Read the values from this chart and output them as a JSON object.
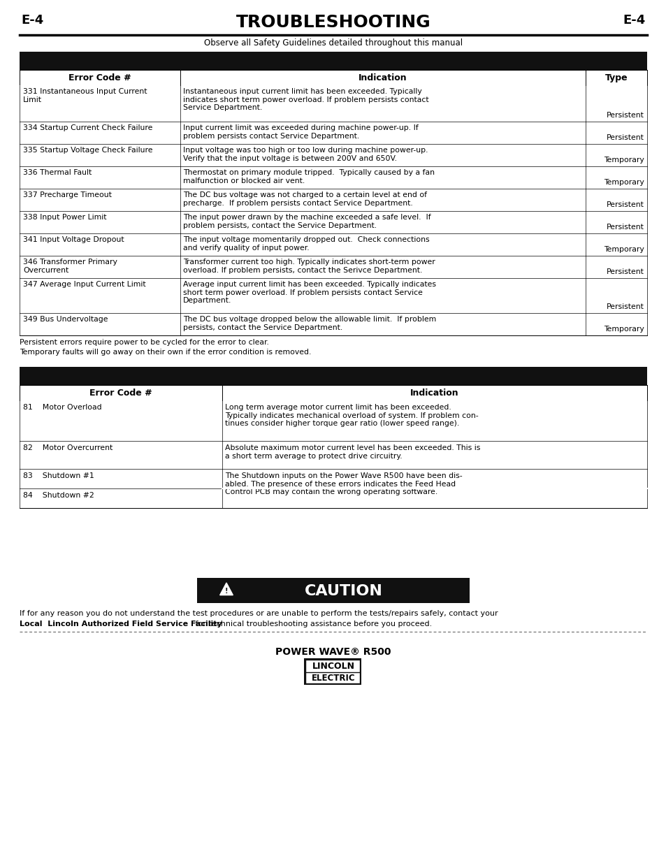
{
  "page_title": "TROUBLESHOOTING",
  "page_number": "E-4",
  "subtitle": "Observe all Safety Guidelines detailed throughout this manual",
  "table1_rows": [
    [
      "331 Instantaneous Input Current\nLimit",
      "Instantaneous input current limit has been exceeded. Typically\nindicates short term power overload. If problem persists contact\nService Department.",
      "Persistent"
    ],
    [
      "334 Startup Current Check Failure",
      "Input current limit was exceeded during machine power-up. If\nproblem persists contact Service Department.",
      "Persistent"
    ],
    [
      "335 Startup Voltage Check Failure",
      "Input voltage was too high or too low during machine power-up.\nVerify that the input voltage is between 200V and 650V.",
      "Temporary"
    ],
    [
      "336 Thermal Fault",
      "Thermostat on primary module tripped.  Typically caused by a fan\nmalfunction or blocked air vent.",
      "Temporary"
    ],
    [
      "337 Precharge Timeout",
      "The DC bus voltage was not charged to a certain level at end of\nprecharge.  If problem persists contact Service Department.",
      "Persistent"
    ],
    [
      "338 Input Power Limit",
      "The input power drawn by the machine exceeded a safe level.  If\nproblem persists, contact the Service Department.",
      "Persistent"
    ],
    [
      "341 Input Voltage Dropout",
      "The input voltage momentarily dropped out.  Check connections\nand verify quality of input power.",
      "Temporary"
    ],
    [
      "346 Transformer Primary\nOvercurrent",
      "Transformer current too high. Typically indicates short-term power\noverload. If problem persists, contact the Serivce Department.",
      "Persistent"
    ],
    [
      "347 Average Input Current Limit",
      "Average input current limit has been exceeded. Typically indicates\nshort term power overload. If problem persists contact Service\nDepartment.",
      "Persistent"
    ],
    [
      "349 Bus Undervoltage",
      "The DC bus voltage dropped below the allowable limit.  If problem\npersists, contact the Service Department.",
      "Temporary"
    ]
  ],
  "table1_note1": "Persistent errors require power to be cycled for the error to clear.",
  "table1_note2": "Temporary faults will go away on their own if the error condition is removed.",
  "table2_rows": [
    [
      "81    Motor Overload",
      "Long term average motor current limit has been exceeded.\nTypically indicates mechanical overload of system. If problem con-\ntinues consider higher torque gear ratio (lower speed range)."
    ],
    [
      "82    Motor Overcurrent",
      "Absolute maximum motor current level has been exceeded. This is\na short term average to protect drive circuitry."
    ],
    [
      "83    Shutdown #1",
      "The Shutdown inputs on the Power Wave R500 have been dis-\nabled. The presence of these errors indicates the Feed Head\nControl PCB may contain the wrong operating software."
    ],
    [
      "84    Shutdown #2",
      ""
    ]
  ],
  "footer_title": "POWER WAVE® R500"
}
